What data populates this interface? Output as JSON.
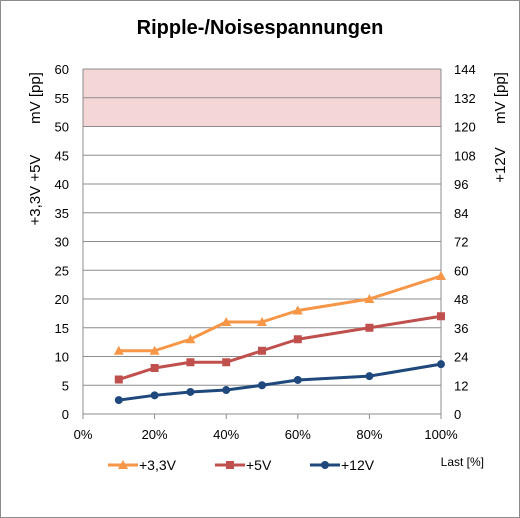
{
  "chart_data": {
    "type": "line",
    "title": "Ripple-/Noisespannungen",
    "xlabel": "Last [%]",
    "ylabel_left": [
      "+3,3V +5V",
      "mV [pp]"
    ],
    "ylabel_right": [
      "+12V",
      "mV [pp]"
    ],
    "xlim": [
      0,
      100
    ],
    "ylim_left": [
      0,
      60
    ],
    "ylim_right": [
      0,
      144
    ],
    "x_ticks": [
      "0%",
      "20%",
      "40%",
      "60%",
      "80%",
      "100%"
    ],
    "y_left_ticks": [
      "0",
      "5",
      "10",
      "15",
      "20",
      "25",
      "30",
      "35",
      "40",
      "45",
      "50",
      "55",
      "60"
    ],
    "y_right_ticks": [
      "0",
      "12",
      "24",
      "36",
      "48",
      "60",
      "72",
      "84",
      "96",
      "108",
      "120",
      "132",
      "144"
    ],
    "limit_band_left": [
      50,
      60
    ],
    "grid": true,
    "legend_position": "bottom",
    "series": [
      {
        "name": "+3,3V",
        "axis": "left",
        "color": "#f79646",
        "marker": "triangle",
        "x": [
          10,
          20,
          30,
          40,
          50,
          60,
          80,
          100
        ],
        "values": [
          11,
          11,
          13,
          16,
          16,
          18,
          20,
          24
        ]
      },
      {
        "name": "+5V",
        "axis": "left",
        "color": "#c0504d",
        "marker": "square",
        "x": [
          10,
          20,
          30,
          40,
          50,
          60,
          80,
          100
        ],
        "values": [
          6,
          8,
          9,
          9,
          11,
          13,
          15,
          17
        ]
      },
      {
        "name": "+12V",
        "axis": "right",
        "color": "#1f497d",
        "marker": "circle",
        "x": [
          10,
          20,
          30,
          40,
          50,
          60,
          80,
          100
        ],
        "values": [
          5.8,
          7.8,
          9.2,
          10,
          12,
          14.2,
          15.8,
          20.8
        ]
      }
    ]
  },
  "colors": {
    "band": "#f4d6d6",
    "grid": "#8c8c8c",
    "line_3v3": "#f79646",
    "line_5v": "#c0504d",
    "line_12v": "#1f497d"
  }
}
